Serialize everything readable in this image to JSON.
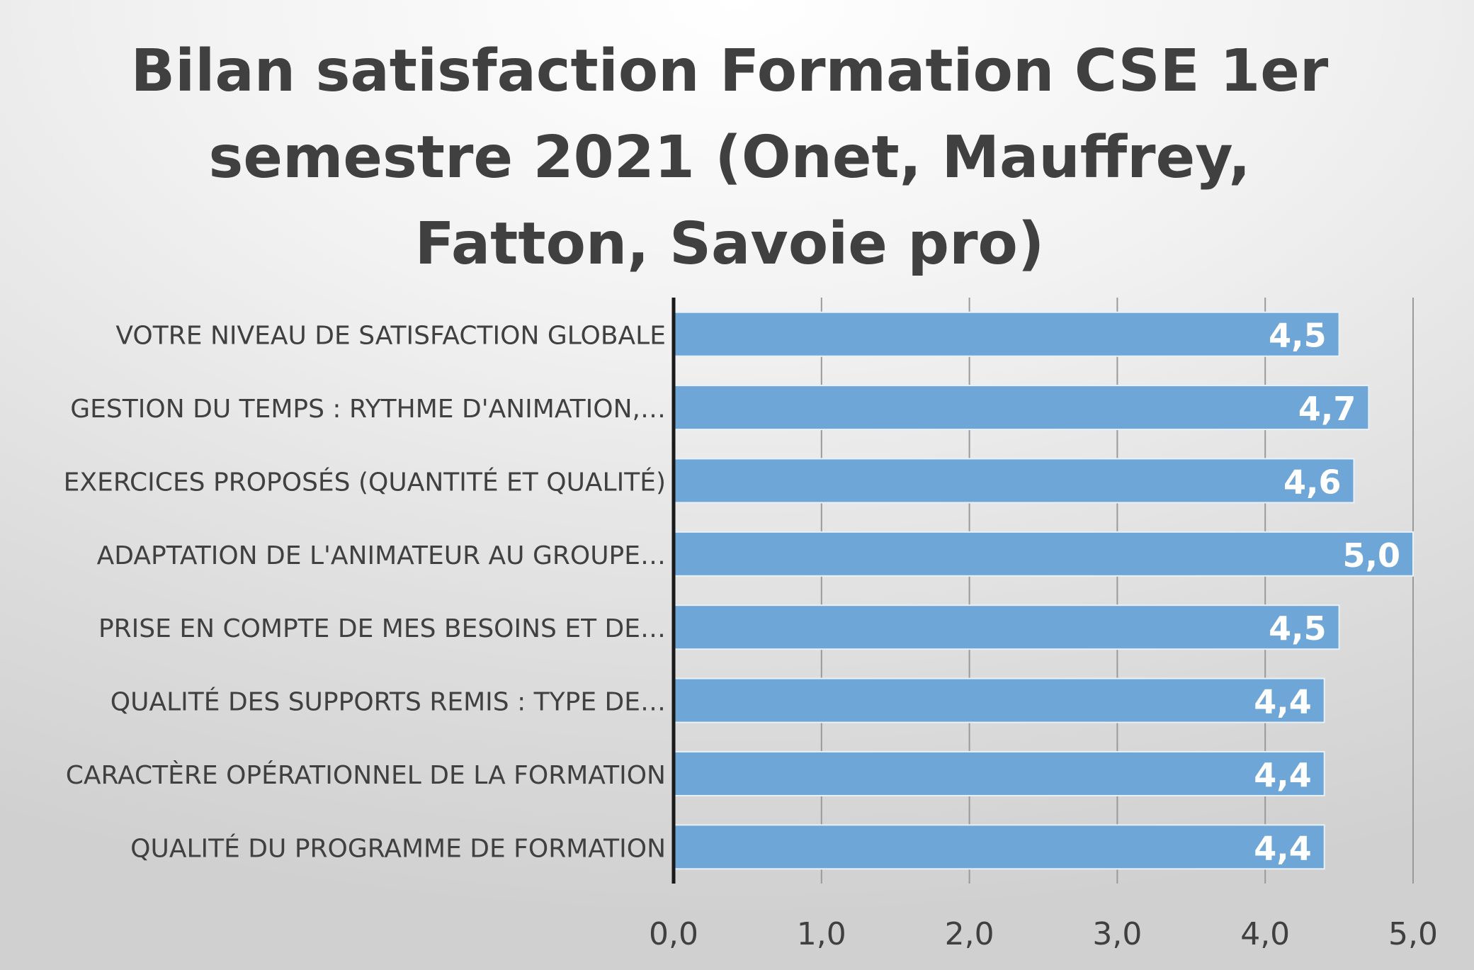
{
  "chart_data": {
    "type": "bar",
    "orientation": "horizontal",
    "title": "Bilan satisfaction Formation CSE 1er semestre 2021 (Onet, Mauffrey, Fatton, Savoie pro)",
    "xlabel": "",
    "ylabel": "",
    "categories": [
      "VOTRE NIVEAU DE SATISFACTION GLOBALE",
      "GESTION DU TEMPS : RYTHME D'ANIMATION,…",
      "EXERCICES PROPOSÉS (QUANTITÉ ET QUALITÉ)",
      "ADAPTATION DE L'ANIMATEUR AU GROUPE…",
      "PRISE EN COMPTE DE MES BESOINS ET DE…",
      "QUALITÉ DES SUPPORTS REMIS : TYPE DE…",
      "CARACTÈRE OPÉRATIONNEL DE LA FORMATION",
      "QUALITÉ DU PROGRAMME DE FORMATION"
    ],
    "values": [
      4.5,
      4.7,
      4.6,
      5.0,
      4.5,
      4.4,
      4.4,
      4.4
    ],
    "data_labels": [
      "4,5",
      "4,7",
      "4,6",
      "5,0",
      "4,5",
      "4,4",
      "4,4",
      "4,4"
    ],
    "xlim": [
      0,
      5
    ],
    "ticks": [
      0,
      1,
      2,
      3,
      4,
      5
    ],
    "tick_labels": [
      "0,0",
      "1,0",
      "2,0",
      "3,0",
      "4,0",
      "5,0"
    ],
    "grid": true,
    "legend": "none",
    "colors": {
      "bar": "#6fa6d8",
      "bar_border": "#e8f0f8",
      "title": "#404040",
      "label": "#404040",
      "data_label": "#ffffff",
      "grid": "#9a9a9a",
      "axis": "#1a1a1a"
    }
  }
}
